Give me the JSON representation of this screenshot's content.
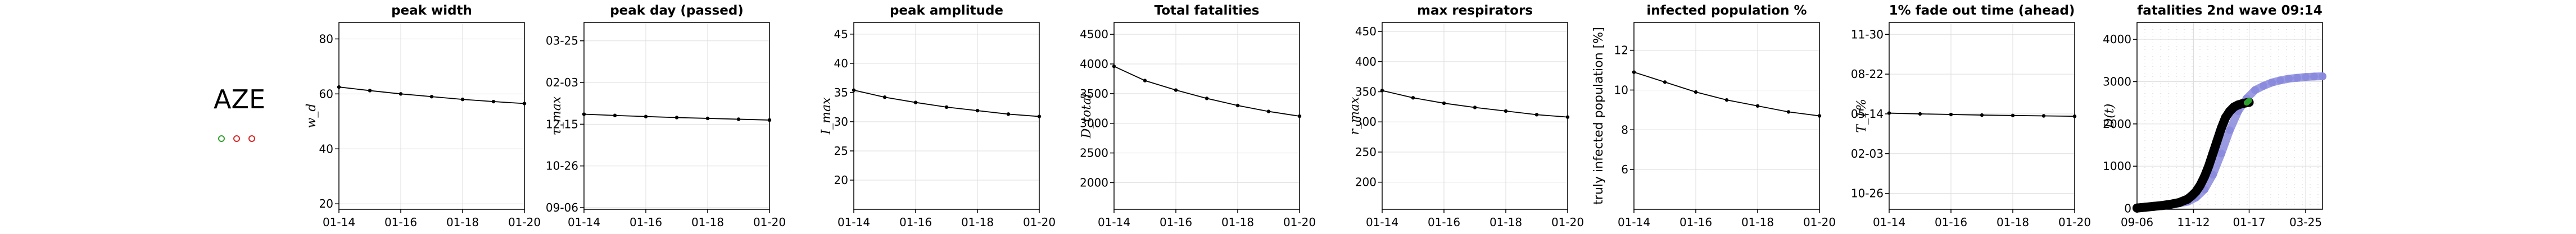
{
  "figure": {
    "country_code": "AZE",
    "legend_markers": [
      {
        "color": "#2ca02c"
      },
      {
        "color": "#d62728"
      },
      {
        "color": "#d62728"
      }
    ]
  },
  "chart_data": [
    {
      "type": "line",
      "title": "peak width",
      "ylabel": "w_d",
      "x_ticks": [
        "01-14",
        "01-16",
        "01-18",
        "01-20"
      ],
      "x": [
        "01-14",
        "01-15",
        "01-16",
        "01-17",
        "01-18",
        "01-19",
        "01-20"
      ],
      "ylim": [
        18,
        86
      ],
      "y_ticks": [
        20,
        40,
        60,
        80
      ],
      "series": [
        {
          "values": [
            62.5,
            61.2,
            60.0,
            59.0,
            58.0,
            57.2,
            56.5
          ],
          "color": "#000000"
        }
      ]
    },
    {
      "type": "line",
      "title": "peak day (passed)",
      "ylabel": "τ_max",
      "x_ticks": [
        "01-14",
        "01-16",
        "01-18",
        "01-20"
      ],
      "x": [
        "01-14",
        "01-15",
        "01-16",
        "01-17",
        "01-18",
        "01-19",
        "01-20"
      ],
      "y_ticks": [
        "09-06",
        "10-26",
        "12-15",
        "02-03",
        "03-25"
      ],
      "y_tick_values": [
        0,
        50,
        100,
        150,
        200
      ],
      "ylim": [
        -2,
        222
      ],
      "series": [
        {
          "values": [
            112,
            110.5,
            109.2,
            108,
            107,
            106,
            105
          ],
          "color": "#000000"
        }
      ]
    },
    {
      "type": "line",
      "title": "peak amplitude",
      "ylabel": "I_max",
      "x_ticks": [
        "01-14",
        "01-16",
        "01-18",
        "01-20"
      ],
      "x": [
        "01-14",
        "01-15",
        "01-16",
        "01-17",
        "01-18",
        "01-19",
        "01-20"
      ],
      "ylim": [
        15,
        47
      ],
      "y_ticks": [
        20,
        25,
        30,
        35,
        40,
        45
      ],
      "series": [
        {
          "values": [
            35.4,
            34.2,
            33.3,
            32.5,
            31.9,
            31.3,
            30.9
          ],
          "color": "#000000"
        }
      ]
    },
    {
      "type": "line",
      "title": "Total fatalities",
      "ylabel": "D_total",
      "x_ticks": [
        "01-14",
        "01-16",
        "01-18",
        "01-20"
      ],
      "x": [
        "01-14",
        "01-15",
        "01-16",
        "01-17",
        "01-18",
        "01-19",
        "01-20"
      ],
      "ylim": [
        1550,
        4700
      ],
      "y_ticks": [
        2000,
        2500,
        3000,
        3500,
        4000,
        4500
      ],
      "series": [
        {
          "values": [
            3960,
            3720,
            3560,
            3420,
            3300,
            3200,
            3120
          ],
          "color": "#000000"
        }
      ]
    },
    {
      "type": "line",
      "title": "max respirators",
      "ylabel": "r_max",
      "x_ticks": [
        "01-14",
        "01-16",
        "01-18",
        "01-20"
      ],
      "x": [
        "01-14",
        "01-15",
        "01-16",
        "01-17",
        "01-18",
        "01-19",
        "01-20"
      ],
      "ylim": [
        155,
        465
      ],
      "y_ticks": [
        200,
        250,
        300,
        350,
        400,
        450
      ],
      "series": [
        {
          "values": [
            352,
            340,
            331,
            324,
            318,
            312,
            308
          ],
          "color": "#000000"
        }
      ]
    },
    {
      "type": "line",
      "title": "infected population %",
      "ylabel": "truly infected population [%]",
      "x_ticks": [
        "01-14",
        "01-16",
        "01-18",
        "01-20"
      ],
      "x": [
        "01-14",
        "01-15",
        "01-16",
        "01-17",
        "01-18",
        "01-19",
        "01-20"
      ],
      "ylim": [
        4.0,
        13.4
      ],
      "y_ticks": [
        6,
        8,
        10,
        12
      ],
      "series": [
        {
          "values": [
            10.9,
            10.4,
            9.9,
            9.5,
            9.2,
            8.9,
            8.7
          ],
          "color": "#000000"
        }
      ]
    },
    {
      "type": "line",
      "title": "1% fade out time (ahead)",
      "ylabel": "T_1%",
      "x_ticks": [
        "01-14",
        "01-16",
        "01-18",
        "01-20"
      ],
      "x": [
        "01-14",
        "01-15",
        "01-16",
        "01-17",
        "01-18",
        "01-19",
        "01-20"
      ],
      "y_ticks": [
        "10-26",
        "02-03",
        "05-14",
        "08-22",
        "11-30"
      ],
      "y_tick_values": [
        0,
        100,
        200,
        300,
        400
      ],
      "ylim": [
        -40,
        430
      ],
      "series": [
        {
          "values": [
            202,
            200,
            198.5,
            197,
            196,
            195,
            194
          ],
          "color": "#000000"
        }
      ]
    },
    {
      "type": "scatter",
      "title": "fatalities 2nd wave 09:14",
      "ylabel": "D(t)",
      "x_ticks": [
        "09-06",
        "11-12",
        "01-17",
        "03-25"
      ],
      "x_tick_values": [
        0,
        67,
        133,
        200
      ],
      "xlim": [
        0,
        220
      ],
      "ylim": [
        -20,
        4400
      ],
      "y_ticks": [
        0,
        1000,
        2000,
        3000,
        4000
      ],
      "series": [
        {
          "color": "#8888dd",
          "x": [
            0,
            20,
            40,
            60,
            70,
            80,
            90,
            100,
            110,
            120,
            130,
            140,
            150,
            160,
            170,
            180,
            190,
            200,
            210,
            220
          ],
          "values": [
            20,
            40,
            80,
            160,
            260,
            450,
            800,
            1300,
            1850,
            2300,
            2600,
            2800,
            2900,
            2980,
            3030,
            3070,
            3090,
            3110,
            3120,
            3125
          ]
        },
        {
          "color": "#000000",
          "x": [
            0,
            10,
            20,
            30,
            40,
            50,
            60,
            65,
            70,
            75,
            80,
            85,
            90,
            95,
            100,
            105,
            110,
            115,
            120,
            125,
            130,
            133
          ],
          "values": [
            10,
            30,
            50,
            70,
            100,
            140,
            220,
            300,
            400,
            550,
            750,
            1000,
            1300,
            1600,
            1900,
            2150,
            2300,
            2400,
            2450,
            2480,
            2500,
            2510
          ]
        },
        {
          "color": "#2ca02c",
          "x": [
            130,
            133
          ],
          "values": [
            2500,
            2550
          ]
        }
      ]
    }
  ]
}
